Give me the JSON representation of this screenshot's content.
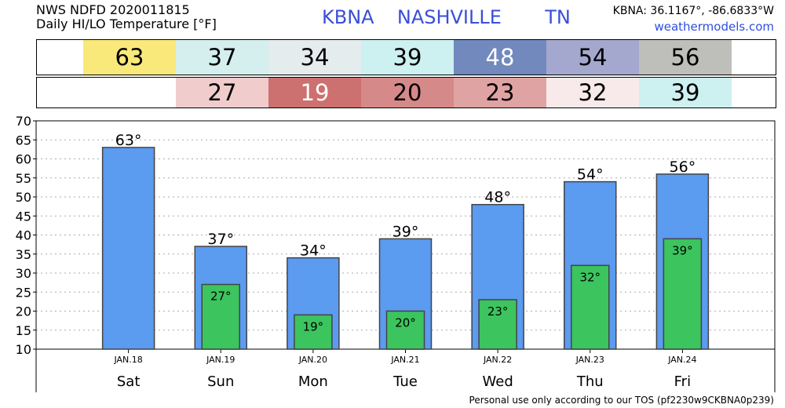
{
  "header": {
    "line1": "NWS NDFD 2020011815",
    "line2": "Daily HI/LO Temperature [°F]",
    "station": "KBNA",
    "city": "NASHVILLE",
    "state": "TN",
    "coords": "KBNA: 36.1167°, -86.6833°W",
    "site": "weathermodels.com"
  },
  "footer": "Personal use only according to our TOS (pf2230w9CKBNA0p239)",
  "hi_row": [
    {
      "value": "63",
      "color": "#f9e97a",
      "text_color": "#000000"
    },
    {
      "value": "37",
      "color": "#d5eeee",
      "text_color": "#000000"
    },
    {
      "value": "34",
      "color": "#e4ecee",
      "text_color": "#000000"
    },
    {
      "value": "39",
      "color": "#cdf0f0",
      "text_color": "#000000"
    },
    {
      "value": "48",
      "color": "#7189bd",
      "text_color": "#ffffff"
    },
    {
      "value": "54",
      "color": "#a5a8ce",
      "text_color": "#000000"
    },
    {
      "value": "56",
      "color": "#bebebb",
      "text_color": "#000000"
    }
  ],
  "lo_row": [
    {
      "value": "",
      "color": "#ffffff",
      "text_color": "#000000"
    },
    {
      "value": "27",
      "color": "#f0cccc",
      "text_color": "#000000"
    },
    {
      "value": "19",
      "color": "#cc7070",
      "text_color": "#ffffff"
    },
    {
      "value": "20",
      "color": "#d68989",
      "text_color": "#000000"
    },
    {
      "value": "23",
      "color": "#e0a3a3",
      "text_color": "#000000"
    },
    {
      "value": "32",
      "color": "#f8eaea",
      "text_color": "#000000"
    },
    {
      "value": "39",
      "color": "#cdf0f0",
      "text_color": "#000000"
    }
  ],
  "chart_data": {
    "type": "bar",
    "categories": [
      "Sat",
      "Sun",
      "Mon",
      "Tue",
      "Wed",
      "Thu",
      "Fri"
    ],
    "dates": [
      "JAN.18",
      "JAN.19",
      "JAN.20",
      "JAN.21",
      "JAN.22",
      "JAN.23",
      "JAN.24"
    ],
    "series": [
      {
        "values": [
          63,
          37,
          34,
          39,
          48,
          54,
          56
        ],
        "labels": [
          "63°",
          "37°",
          "34°",
          "39°",
          "48°",
          "54°",
          "56°"
        ],
        "color": "#5b9bf0"
      },
      {
        "values": [
          null,
          27,
          19,
          20,
          23,
          32,
          39
        ],
        "labels": [
          "",
          "27°",
          "19°",
          "20°",
          "23°",
          "32°",
          "39°"
        ],
        "color": "#3cc45e"
      }
    ],
    "ylim": [
      10,
      70
    ],
    "yticks": [
      "10",
      "15",
      "20",
      "25",
      "30",
      "35",
      "40",
      "45",
      "50",
      "55",
      "60",
      "65",
      "70"
    ],
    "grid": true
  }
}
